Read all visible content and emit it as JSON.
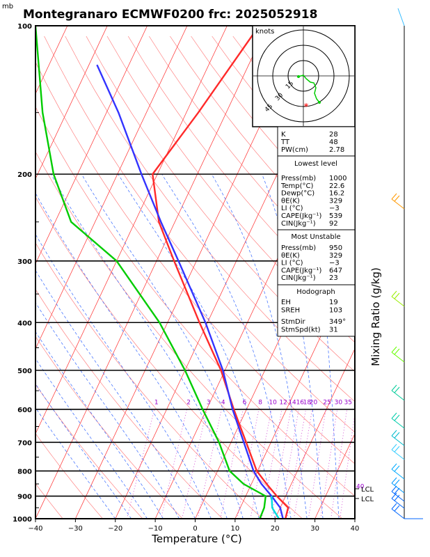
{
  "header": {
    "unit_top": "mb",
    "title": "Montegranaro ECMWF0200 frc: 2025052918"
  },
  "axes": {
    "xlabel": "Temperature (°C)",
    "right_label": "Mixing Ratio (g/kg)",
    "hodograph_label": "knots",
    "hodograph_rings": [
      "15",
      "30",
      "45"
    ]
  },
  "chart_data": {
    "type": "line",
    "title": "Montegranaro ECMWF0200 frc: 2025052918",
    "xlabel": "Temperature (°C)",
    "ylabel": "",
    "xlim": [
      -40,
      40
    ],
    "ylim": [
      1000,
      100
    ],
    "y_scale": "log",
    "x_ticks": [
      "−40",
      "−30",
      "−20",
      "−10",
      "0",
      "10",
      "20",
      "30",
      "40"
    ],
    "pressure_ticks": [
      "100",
      "200",
      "300",
      "400",
      "500",
      "600",
      "700",
      "800",
      "900",
      "1000"
    ],
    "mixing_ratio_labels": [
      "1",
      "2",
      "3",
      "4",
      "6",
      "8",
      "10",
      "12",
      "14",
      "16",
      "18",
      "20",
      "25",
      "30",
      "35",
      "40"
    ],
    "series": [
      {
        "color": "#ff2a2a",
        "pressure": [
          1000,
          950,
          900,
          850,
          800,
          700,
          600,
          500,
          400,
          300,
          250,
          200,
          150,
          100
        ],
        "values": [
          22.6,
          22,
          17.8,
          13.8,
          9.8,
          3.8,
          -3.2,
          -11,
          -22,
          -35.6,
          -44,
          -51.2,
          -47,
          -42
        ]
      },
      {
        "color": "#00cc00",
        "pressure": [
          1000,
          950,
          900,
          850,
          800,
          700,
          600,
          500,
          400,
          300,
          250,
          200,
          150,
          100
        ],
        "values": [
          16.2,
          16,
          15,
          8,
          3,
          -3,
          -11,
          -20,
          -32,
          -50,
          -66,
          -76,
          -86,
          -98
        ]
      },
      {
        "color": "#3333ff",
        "pressure": [
          1000,
          950,
          900,
          850,
          800,
          700,
          600,
          500,
          400,
          300,
          250,
          200,
          150,
          120
        ],
        "values": [
          22,
          20,
          16.5,
          12.5,
          9,
          3.2,
          -3.5,
          -10.5,
          -20.5,
          -34.5,
          -43.5,
          -54,
          -67,
          -78
        ]
      },
      {
        "color": "#00dddd",
        "pressure": [
          1000,
          950,
          900
        ],
        "values": [
          21,
          18,
          16.5
        ]
      }
    ]
  },
  "lcl": {
    "label": "LCL",
    "pressures": [
      880,
      912
    ]
  },
  "info_table": {
    "top": [
      [
        "K",
        "28"
      ],
      [
        "TT",
        "48"
      ],
      [
        "PW(cm)",
        "2.78"
      ]
    ],
    "lowest_title": "Lowest level",
    "lowest": [
      [
        "Press(mb)",
        "1000"
      ],
      [
        "Temp(°C)",
        "22.6"
      ],
      [
        "Dewp(°C)",
        "16.2"
      ],
      [
        "θE(K)",
        "329"
      ],
      [
        "LI (°C)",
        "−3"
      ],
      [
        "CAPE(Jkg⁻¹)",
        "539"
      ],
      [
        "CIN(Jkg⁻¹)",
        "92"
      ]
    ],
    "unstable_title": "Most Unstable",
    "unstable": [
      [
        "Press(mb)",
        "950"
      ],
      [
        "θE(K)",
        "329"
      ],
      [
        "LI (°C)",
        "−3"
      ],
      [
        "CAPE(Jkg⁻¹)",
        "647"
      ],
      [
        "CIN(Jkg⁻¹)",
        "23"
      ]
    ],
    "hodo_title": "Hodograph",
    "hodo": [
      [
        "EH",
        "19"
      ],
      [
        "SREH",
        "103"
      ],
      [
        "StmDir",
        "349°"
      ],
      [
        "StmSpd(kt)",
        "31"
      ]
    ]
  },
  "colors": {
    "isotherms": "#ff2a2a",
    "dry_adiabats": "#ff5555",
    "moist_adiabats": "#3366ff",
    "mixing_ratio": "#cc33cc",
    "temperature": "#ff2a2a",
    "dewpoint": "#00cc00",
    "parcel": "#3333ff",
    "virtual": "#00dddd"
  }
}
